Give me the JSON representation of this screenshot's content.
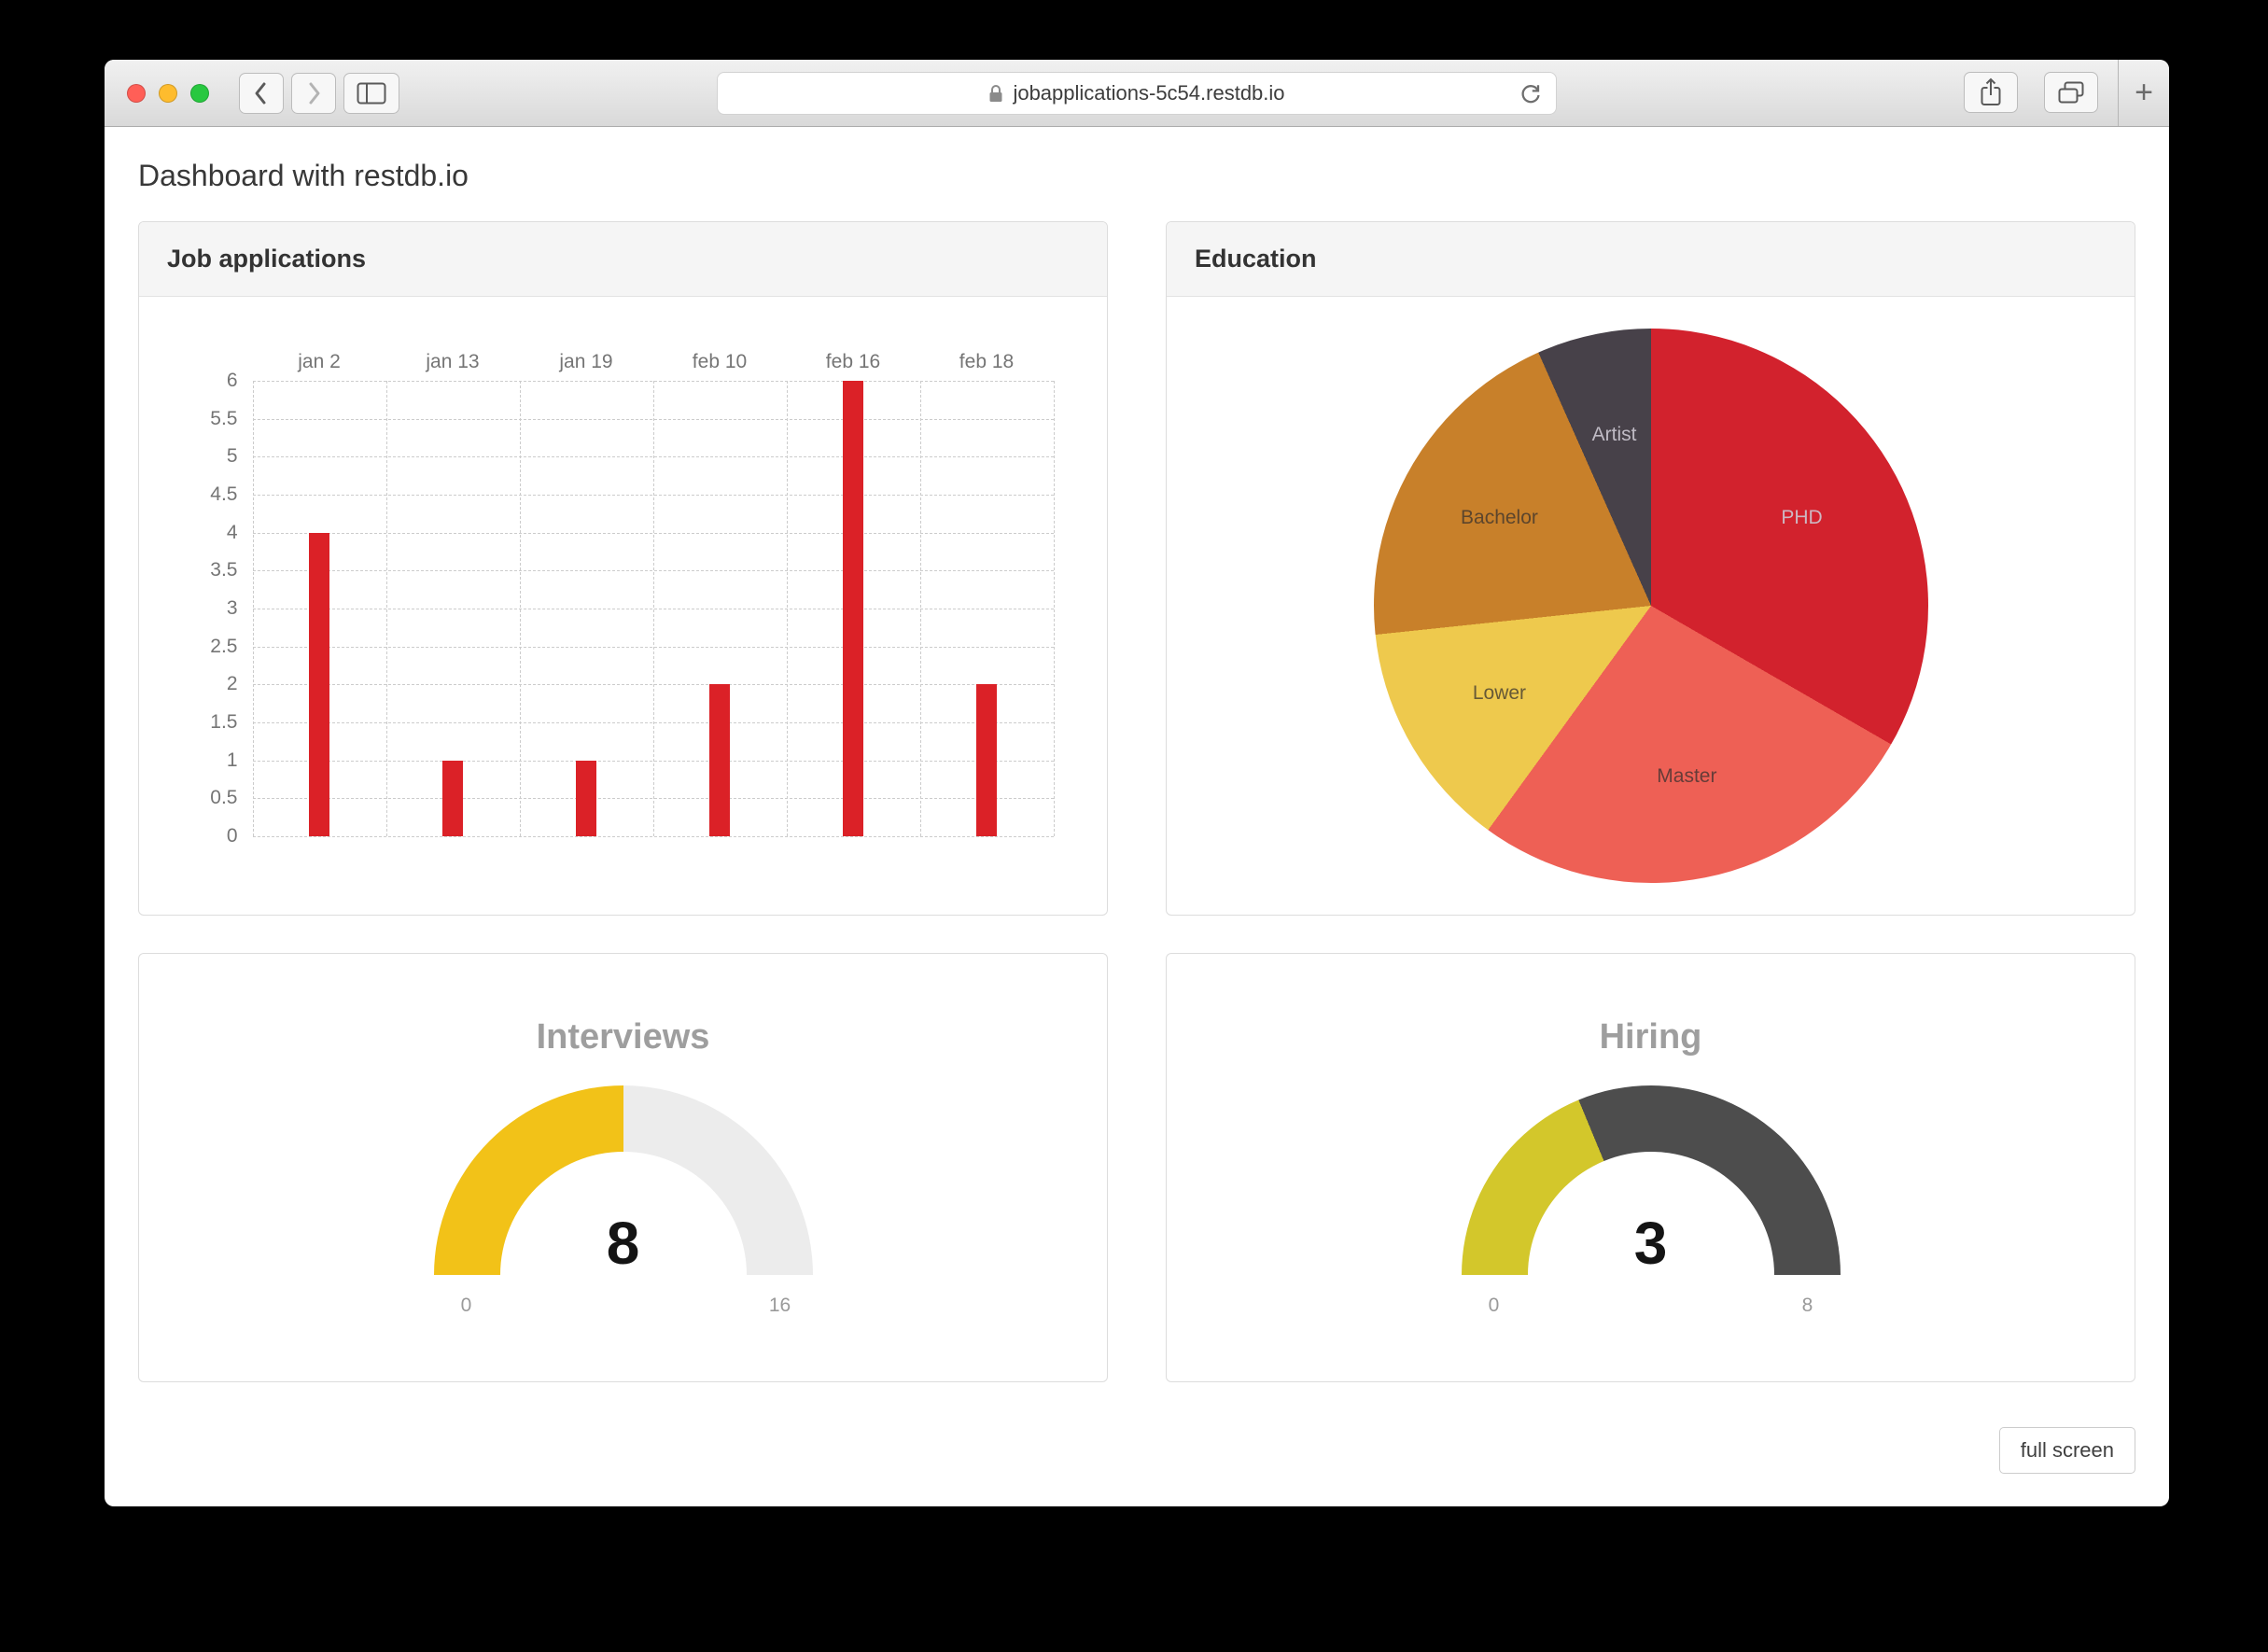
{
  "browser": {
    "address": "jobapplications-5c54.restdb.io",
    "new_tab_glyph": "+"
  },
  "page": {
    "heading": "Dashboard with restdb.io",
    "fullscreen_button": "full screen"
  },
  "chart_data": [
    {
      "id": "job_applications",
      "type": "bar",
      "title": "Job applications",
      "categories": [
        "jan 2",
        "jan 13",
        "jan 19",
        "feb 10",
        "feb 16",
        "feb 18"
      ],
      "values": [
        4,
        1,
        1,
        2,
        6,
        2
      ],
      "bar_color": "#db2127",
      "ylim": [
        0,
        6
      ],
      "yticks": [
        "0",
        "0.5",
        "1",
        "1.5",
        "2",
        "2.5",
        "3",
        "3.5",
        "4",
        "4.5",
        "5",
        "5.5",
        "6"
      ],
      "x_labels_position": "top",
      "grid": "dashed"
    },
    {
      "id": "education",
      "type": "pie",
      "title": "Education",
      "labels": [
        "PHD",
        "Master",
        "Lower",
        "Bachelor",
        "Artist"
      ],
      "values": [
        5,
        4,
        2,
        3,
        1
      ],
      "colors": [
        "#d2222d",
        "#ee6055",
        "#eec94d",
        "#c8802a",
        "#474149"
      ],
      "start_angle": 0,
      "direction": "clockwise"
    },
    {
      "id": "interviews",
      "type": "gauge",
      "title": "Interviews",
      "value": 8,
      "min": 0,
      "max": 16,
      "fill_color": "#f2c218",
      "track_color": "#ececec"
    },
    {
      "id": "hiring",
      "type": "gauge",
      "title": "Hiring",
      "value": 3,
      "min": 0,
      "max": 8,
      "fill_color": "#d3c72b",
      "track_color": "#4d4d4d"
    }
  ]
}
